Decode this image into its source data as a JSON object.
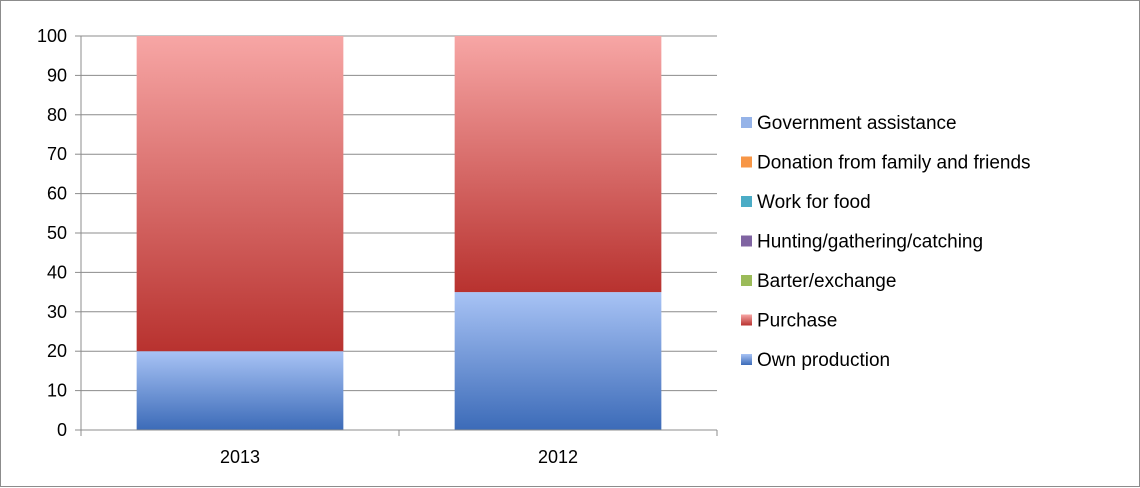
{
  "chart_data": {
    "type": "bar",
    "stacked": true,
    "categories": [
      "2013",
      "2012"
    ],
    "series": [
      {
        "name": "Own production",
        "values": [
          20,
          35
        ],
        "color": "#4a7cc7",
        "color_top": "#a8c3f5",
        "color_bottom": "#3c6bb8"
      },
      {
        "name": "Purchase",
        "values": [
          80,
          65
        ],
        "color": "#c0504d",
        "color_top": "#f7a6a5",
        "color_bottom": "#b8322f"
      },
      {
        "name": "Barter/exchange",
        "values": [
          0,
          0
        ],
        "color": "#9bbb59"
      },
      {
        "name": "Hunting/gathering/catching",
        "values": [
          0,
          0
        ],
        "color": "#8064a2"
      },
      {
        "name": "Work for food",
        "values": [
          0,
          0
        ],
        "color": "#4bacc6"
      },
      {
        "name": "Donation from family and friends",
        "values": [
          0,
          0
        ],
        "color": "#f79646"
      },
      {
        "name": "Government assistance",
        "values": [
          0,
          0
        ],
        "color": "#95b3e8"
      }
    ],
    "legend_order": [
      6,
      5,
      4,
      3,
      2,
      1,
      0
    ],
    "ylim": [
      0,
      100
    ],
    "yticks": [
      0,
      10,
      20,
      30,
      40,
      50,
      60,
      70,
      80,
      90,
      100
    ],
    "grid": true,
    "legend_position": "right",
    "title": "",
    "xlabel": "",
    "ylabel": ""
  }
}
